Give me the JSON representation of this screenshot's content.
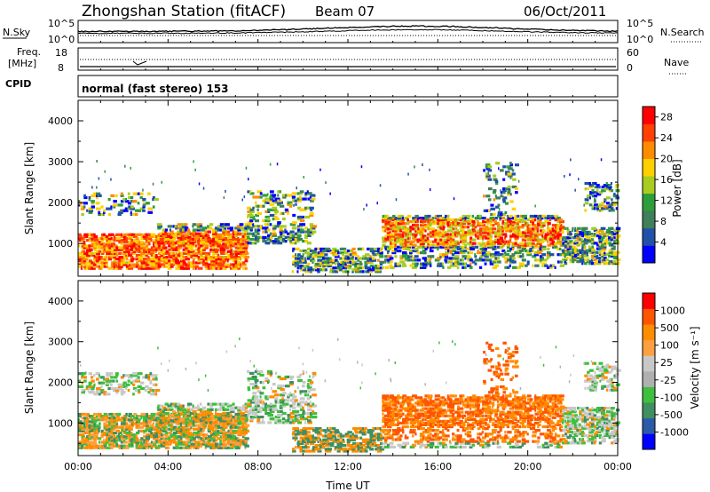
{
  "header": {
    "station": "Zhongshan Station (fitACF)",
    "beam": "Beam 07",
    "date": "06/Oct/2011"
  },
  "noise_panel": {
    "left_label": "N.Sky",
    "right_label": "N.Search",
    "left_ticks": [
      "10^5",
      "10^0"
    ],
    "right_ticks": [
      "10^5",
      "10^0"
    ]
  },
  "freq_panel": {
    "left_label": "Freq.",
    "left_unit": "[MHz]",
    "right_label": "Nave",
    "left_ticks": [
      "18",
      "8"
    ],
    "right_ticks": [
      "60",
      "0"
    ]
  },
  "cpid": {
    "label": "CPID",
    "text": "normal (fast stereo) 153"
  },
  "colors": {
    "power": [
      "#0000ff",
      "#2050a8",
      "#3f7f5a",
      "#2e9e3a",
      "#a8cc20",
      "#ffd000",
      "#ff8c00",
      "#ff4000",
      "#ff0000"
    ],
    "velocity": [
      "#ff0000",
      "#ff5500",
      "#ff8c00",
      "#ffa040",
      "#c8c8c8",
      "#b0b0b0",
      "#3fbf3f",
      "#3f8f60",
      "#2a5aa8",
      "#0000ff"
    ]
  },
  "chart_data": [
    {
      "type": "heatmap",
      "title": "",
      "xlabel": "",
      "ylabel": "Slant Range [km]",
      "xlim": [
        0,
        24
      ],
      "ylim": [
        200,
        4500
      ],
      "yticks": [
        "1000",
        "2000",
        "3000",
        "4000"
      ],
      "colorbar": {
        "label": "Power [dB]",
        "ticks": [
          "4",
          "8",
          "12",
          "16",
          "20",
          "24",
          "28"
        ],
        "range": [
          0,
          30
        ]
      }
    },
    {
      "type": "heatmap",
      "title": "",
      "xlabel": "Time UT",
      "ylabel": "Slant Range [km]",
      "xlim": [
        0,
        24
      ],
      "ylim": [
        200,
        4500
      ],
      "xticks": [
        "00:00",
        "04:00",
        "08:00",
        "12:00",
        "16:00",
        "20:00",
        "00:00"
      ],
      "yticks": [
        "1000",
        "2000",
        "3000",
        "4000"
      ],
      "colorbar": {
        "label": "Velocity [m s⁻¹]",
        "ticks": [
          "1000",
          "500",
          "100",
          "25",
          "-25",
          "-100",
          "-500",
          "-1000"
        ]
      }
    }
  ]
}
